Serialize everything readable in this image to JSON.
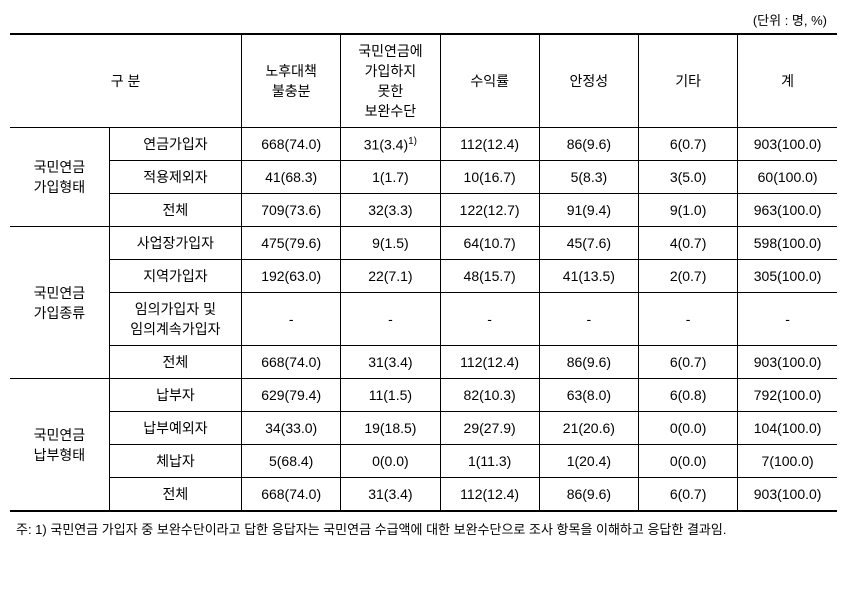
{
  "unit_label": "(단위 : 명, %)",
  "headers": {
    "category": "구 분",
    "col1": "노후대책\n불충분",
    "col2": "국민연금에\n가입하지\n못한\n보완수단",
    "col3": "수익률",
    "col4": "안정성",
    "col5": "기타",
    "col6": "계"
  },
  "sections": [
    {
      "group_label": "국민연금\n가입형태",
      "rows": [
        {
          "label": "연금가입자",
          "c1": "668(74.0)",
          "c2": "31(3.4)",
          "c2_sup": "1)",
          "c3": "112(12.4)",
          "c4": "86(9.6)",
          "c5": "6(0.7)",
          "c6": "903(100.0)"
        },
        {
          "label": "적용제외자",
          "c1": "41(68.3)",
          "c2": "1(1.7)",
          "c3": "10(16.7)",
          "c4": "5(8.3)",
          "c5": "3(5.0)",
          "c6": "60(100.0)"
        },
        {
          "label": "전체",
          "c1": "709(73.6)",
          "c2": "32(3.3)",
          "c3": "122(12.7)",
          "c4": "91(9.4)",
          "c5": "9(1.0)",
          "c6": "963(100.0)"
        }
      ]
    },
    {
      "group_label": "국민연금\n가입종류",
      "rows": [
        {
          "label": "사업장가입자",
          "c1": "475(79.6)",
          "c2": "9(1.5)",
          "c3": "64(10.7)",
          "c4": "45(7.6)",
          "c5": "4(0.7)",
          "c6": "598(100.0)"
        },
        {
          "label": "지역가입자",
          "c1": "192(63.0)",
          "c2": "22(7.1)",
          "c3": "48(15.7)",
          "c4": "41(13.5)",
          "c5": "2(0.7)",
          "c6": "305(100.0)"
        },
        {
          "label": "임의가입자 및\n임의계속가입자",
          "c1": "-",
          "c2": "-",
          "c3": "-",
          "c4": "-",
          "c5": "-",
          "c6": "-"
        },
        {
          "label": "전체",
          "c1": "668(74.0)",
          "c2": "31(3.4)",
          "c3": "112(12.4)",
          "c4": "86(9.6)",
          "c5": "6(0.7)",
          "c6": "903(100.0)"
        }
      ]
    },
    {
      "group_label": "국민연금\n납부형태",
      "rows": [
        {
          "label": "납부자",
          "c1": "629(79.4)",
          "c2": "11(1.5)",
          "c3": "82(10.3)",
          "c4": "63(8.0)",
          "c5": "6(0.8)",
          "c6": "792(100.0)"
        },
        {
          "label": "납부예외자",
          "c1": "34(33.0)",
          "c2": "19(18.5)",
          "c3": "29(27.9)",
          "c4": "21(20.6)",
          "c5": "0(0.0)",
          "c6": "104(100.0)"
        },
        {
          "label": "체납자",
          "c1": "5(68.4)",
          "c2": "0(0.0)",
          "c3": "1(11.3)",
          "c4": "1(20.4)",
          "c5": "0(0.0)",
          "c6": "7(100.0)"
        },
        {
          "label": "전체",
          "c1": "668(74.0)",
          "c2": "31(3.4)",
          "c3": "112(12.4)",
          "c4": "86(9.6)",
          "c5": "6(0.7)",
          "c6": "903(100.0)"
        }
      ]
    }
  ],
  "footnote": "주: 1) 국민연금 가입자 중 보완수단이라고 답한 응답자는 국민연금 수급액에 대한 보완수단으로 조사 항목을 이해하고 응답한 결과임."
}
